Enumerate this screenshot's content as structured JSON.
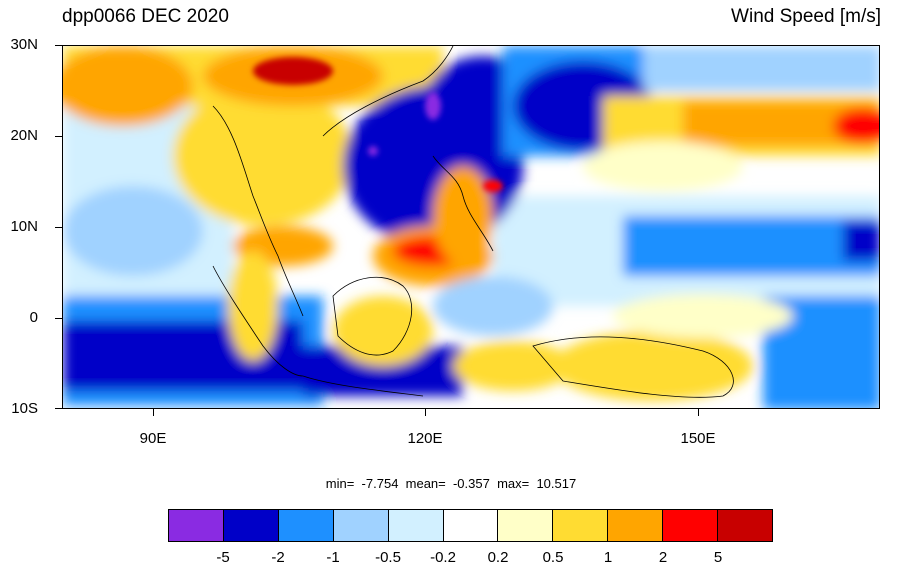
{
  "header": {
    "title_left": "dpp0066 DEC 2020",
    "title_right": "Wind Speed [m/s]"
  },
  "axes": {
    "y_labels": [
      "30N",
      "20N",
      "10N",
      "0",
      "10S"
    ],
    "x_labels": [
      "90E",
      "120E",
      "150E"
    ]
  },
  "stats": {
    "text": "min=  -7.754  mean=  -0.357  max=  10.517"
  },
  "colorbar": {
    "colors": [
      "#8a2be2",
      "#0000c8",
      "#1e90ff",
      "#a0d2ff",
      "#d2f0ff",
      "#ffffff",
      "#ffffc8",
      "#ffdc32",
      "#ffa500",
      "#ff0000",
      "#c80000"
    ],
    "labels": [
      "-5",
      "-2",
      "-1",
      "-0.5",
      "-0.2",
      "0.2",
      "0.5",
      "1",
      "2",
      "5"
    ]
  }
}
